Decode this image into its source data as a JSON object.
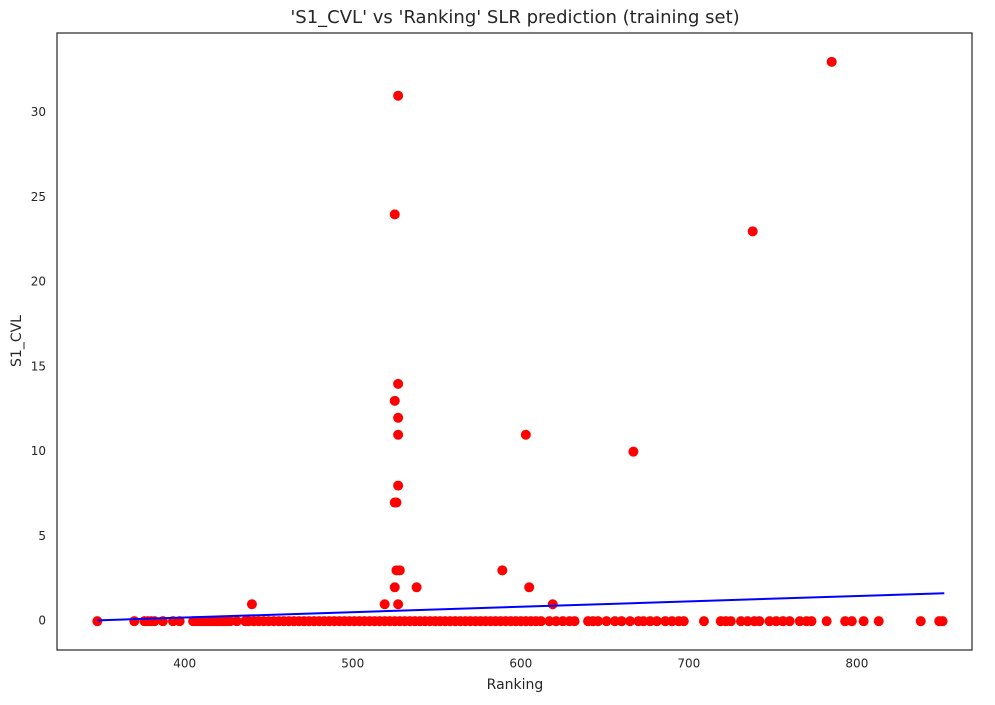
{
  "chart_data": {
    "type": "scatter",
    "title": "'S1_CVL' vs 'Ranking' SLR prediction (training set)",
    "x_label": "Ranking",
    "y_label": "S1_CVL",
    "points": {
      "color": "#ff0000",
      "x": [
        348,
        370,
        376,
        378,
        380,
        382,
        387,
        393,
        397,
        405,
        407,
        409,
        411,
        413,
        415,
        417,
        419,
        421,
        423,
        425,
        427,
        431,
        436,
        438,
        441,
        444,
        447,
        450,
        453,
        456,
        459,
        462,
        465,
        468,
        471,
        474,
        477,
        480,
        483,
        486,
        489,
        492,
        495,
        498,
        501,
        504,
        507,
        510,
        513,
        516,
        519,
        522,
        525,
        528,
        531,
        534,
        537,
        540,
        543,
        546,
        549,
        552,
        555,
        558,
        561,
        564,
        567,
        570,
        573,
        576,
        579,
        582,
        585,
        588,
        591,
        594,
        597,
        600,
        603,
        606,
        609,
        612,
        617,
        621,
        625,
        629,
        632,
        640,
        643,
        646,
        651,
        656,
        660,
        665,
        670,
        673,
        677,
        681,
        686,
        690,
        694,
        697,
        709,
        719,
        722,
        725,
        731,
        735,
        739,
        742,
        748,
        752,
        756,
        760,
        766,
        770,
        773,
        782,
        793,
        797,
        804,
        813,
        838,
        849,
        851,
        527,
        785,
        525,
        738,
        527,
        525,
        527,
        527,
        603,
        667,
        527,
        525,
        526,
        526,
        528,
        589,
        525,
        538,
        605,
        440,
        519,
        527,
        619
      ],
      "values": [
        0,
        0,
        0,
        0,
        0,
        0,
        0,
        0,
        0,
        0,
        0,
        0,
        0,
        0,
        0,
        0,
        0,
        0,
        0,
        0,
        0,
        0,
        0,
        0,
        0,
        0,
        0,
        0,
        0,
        0,
        0,
        0,
        0,
        0,
        0,
        0,
        0,
        0,
        0,
        0,
        0,
        0,
        0,
        0,
        0,
        0,
        0,
        0,
        0,
        0,
        0,
        0,
        0,
        0,
        0,
        0,
        0,
        0,
        0,
        0,
        0,
        0,
        0,
        0,
        0,
        0,
        0,
        0,
        0,
        0,
        0,
        0,
        0,
        0,
        0,
        0,
        0,
        0,
        0,
        0,
        0,
        0,
        0,
        0,
        0,
        0,
        0,
        0,
        0,
        0,
        0,
        0,
        0,
        0,
        0,
        0,
        0,
        0,
        0,
        0,
        0,
        0,
        0,
        0,
        0,
        0,
        0,
        0,
        0,
        0,
        0,
        0,
        0,
        0,
        0,
        0,
        0,
        0,
        0,
        0,
        0,
        0,
        0,
        0,
        0,
        31,
        33,
        24,
        23,
        14,
        13,
        12,
        11,
        11,
        10,
        8,
        7,
        7,
        3,
        3,
        3,
        2,
        2,
        2,
        1,
        1,
        1,
        1
      ]
    },
    "fit_line": {
      "color": "#0000ff",
      "x": [
        348,
        852
      ],
      "values": [
        0.05,
        1.65
      ]
    },
    "xlim": [
      324,
      868.5
    ],
    "ylim": [
      -1.7,
      34.7
    ],
    "xticks": [
      400,
      500,
      600,
      700,
      800
    ],
    "yticks": [
      0,
      5,
      10,
      15,
      20,
      25,
      30
    ],
    "grid": false
  }
}
